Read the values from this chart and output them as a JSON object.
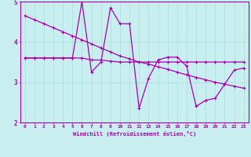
{
  "xlabel": "Windchill (Refroidissement éolien,°C)",
  "x_ticks": [
    0,
    1,
    2,
    3,
    4,
    5,
    6,
    7,
    8,
    9,
    10,
    11,
    12,
    13,
    14,
    15,
    16,
    17,
    18,
    19,
    20,
    21,
    22,
    23
  ],
  "ylim": [
    2,
    5
  ],
  "xlim": [
    -0.5,
    23.5
  ],
  "y_ticks": [
    2,
    3,
    4,
    5
  ],
  "bg_color": "#c8eef0",
  "grid_color": "#aadddd",
  "line_color": "#aa00aa",
  "line1_y": [
    3.6,
    3.6,
    3.6,
    3.6,
    3.6,
    3.6,
    3.6,
    3.55,
    3.55,
    3.52,
    3.5,
    3.5,
    3.5,
    3.5,
    3.5,
    3.5,
    3.5,
    3.5,
    3.5,
    3.5,
    3.5,
    3.5,
    3.5,
    3.5
  ],
  "line2_y": [
    4.65,
    4.55,
    4.45,
    4.35,
    4.25,
    4.15,
    4.05,
    3.95,
    3.85,
    3.75,
    3.65,
    3.58,
    3.5,
    3.45,
    3.38,
    3.32,
    3.25,
    3.18,
    3.12,
    3.06,
    3.0,
    2.95,
    2.9,
    2.85
  ],
  "line3_y": [
    3.6,
    3.6,
    3.6,
    3.6,
    3.6,
    3.6,
    5.0,
    3.25,
    3.5,
    4.85,
    4.45,
    4.45,
    2.35,
    3.1,
    3.55,
    3.62,
    3.62,
    3.4,
    2.4,
    2.55,
    2.6,
    2.95,
    3.3,
    3.35
  ]
}
